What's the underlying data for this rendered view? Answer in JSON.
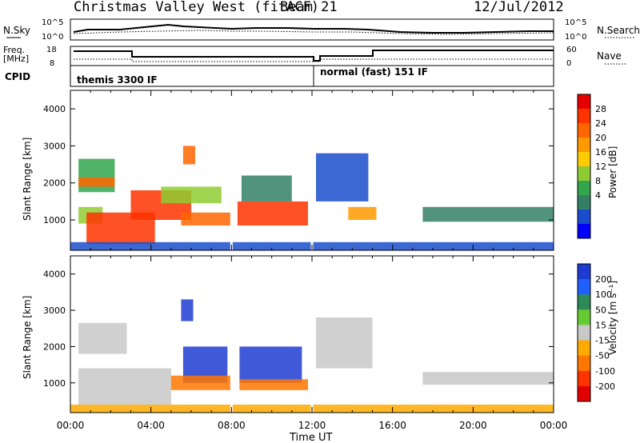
{
  "header": {
    "station": "Christmas Valley West (fitACF)",
    "beam": "Beam 21",
    "date": "12/Jul/2012"
  },
  "summary": {
    "nsky_label": "N.Sky",
    "freq_label_1": "Freq.",
    "freq_label_2": "[MHz]",
    "cpid_label": "CPID",
    "nsearch_label": "N.Search",
    "nave_label": "Nave",
    "noise_ticks": [
      "10^5",
      "10^0"
    ],
    "freq_ticks": [
      "18",
      "8"
    ],
    "nave_ticks": [
      "60",
      "0"
    ],
    "cpid_names": [
      "themis 3300 IF",
      "normal (fast) 151 IF"
    ]
  },
  "axes": {
    "ylabel": "Slant Range [km]",
    "xlabel": "Time UT",
    "xticks": [
      "00:00",
      "04:00",
      "08:00",
      "12:00",
      "16:00",
      "20:00",
      "00:00"
    ],
    "yticks": [
      "1000",
      "2000",
      "3000",
      "4000"
    ]
  },
  "colorbars": {
    "power": {
      "label": "Power [dB]",
      "ticks": [
        "28",
        "24",
        "20",
        "16",
        "12",
        "8",
        "4"
      ],
      "colors": [
        "#e60000",
        "#ff3300",
        "#ff6600",
        "#ff9900",
        "#ffcc00",
        "#8fcc33",
        "#33a64d",
        "#338066",
        "#1a4dcc",
        "#0000ff"
      ]
    },
    "velocity": {
      "label": "Velocity [m s⁻¹]",
      "ticks": [
        "200",
        "100",
        "50",
        "15",
        "-15",
        "-50",
        "-100",
        "-200"
      ],
      "colors": [
        "#1e3cd2",
        "#2060ff",
        "#2e8b57",
        "#66cc33",
        "#c8c8c8",
        "#ffaa00",
        "#ff7700",
        "#ff3300",
        "#e00000"
      ]
    }
  },
  "chart_data": [
    {
      "type": "heatmap",
      "title": "Power",
      "xlabel": "Time UT",
      "ylabel": "Slant Range [km]",
      "xlim_hours": [
        0,
        24
      ],
      "ylim_km": [
        180,
        4500
      ],
      "colorbar": {
        "label": "Power [dB]",
        "range": [
          0,
          32
        ]
      },
      "regions": [
        {
          "t": [
            0.4,
            2.2
          ],
          "r": [
            1750,
            2650
          ],
          "db": 12
        },
        {
          "t": [
            0.4,
            2.2
          ],
          "r": [
            1900,
            2150
          ],
          "db": 24
        },
        {
          "t": [
            0.4,
            1.6
          ],
          "r": [
            900,
            1350
          ],
          "db": 14
        },
        {
          "t": [
            0.8,
            4.2
          ],
          "r": [
            350,
            1200
          ],
          "db": 26
        },
        {
          "t": [
            3.0,
            6.0
          ],
          "r": [
            1000,
            1800
          ],
          "db": 26
        },
        {
          "t": [
            4.5,
            7.5
          ],
          "r": [
            1450,
            1900
          ],
          "db": 14
        },
        {
          "t": [
            5.6,
            6.2
          ],
          "r": [
            2500,
            3000
          ],
          "db": 22
        },
        {
          "t": [
            5.5,
            8.0
          ],
          "r": [
            850,
            1200
          ],
          "db": 24
        },
        {
          "t": [
            8.3,
            11.8
          ],
          "r": [
            850,
            1500
          ],
          "db": 26
        },
        {
          "t": [
            8.5,
            11.0
          ],
          "r": [
            1500,
            2200
          ],
          "db": 10
        },
        {
          "t": [
            12.2,
            14.8
          ],
          "r": [
            1500,
            2800
          ],
          "db": 8
        },
        {
          "t": [
            13.8,
            15.2
          ],
          "r": [
            1000,
            1350
          ],
          "db": 18
        },
        {
          "t": [
            17.5,
            24.0
          ],
          "r": [
            950,
            1350
          ],
          "db": 10
        },
        {
          "t": [
            0.0,
            24.0
          ],
          "r": [
            180,
            400
          ],
          "db": 6
        }
      ]
    },
    {
      "type": "heatmap",
      "title": "Velocity",
      "xlabel": "Time UT",
      "ylabel": "Slant Range [km]",
      "xlim_hours": [
        0,
        24
      ],
      "ylim_km": [
        180,
        4500
      ],
      "colorbar": {
        "label": "Velocity [m s⁻¹]",
        "range": [
          -250,
          250
        ]
      },
      "regions": [
        {
          "t": [
            0.4,
            2.8
          ],
          "r": [
            1800,
            2650
          ],
          "v": 0
        },
        {
          "t": [
            0.4,
            5.0
          ],
          "r": [
            400,
            1400
          ],
          "v": 0
        },
        {
          "t": [
            5.5,
            6.1
          ],
          "r": [
            2700,
            3300
          ],
          "v": 150
        },
        {
          "t": [
            5.6,
            7.8
          ],
          "r": [
            1000,
            2000
          ],
          "v": 180
        },
        {
          "t": [
            5.0,
            8.0
          ],
          "r": [
            800,
            1200
          ],
          "v": -60
        },
        {
          "t": [
            8.4,
            11.5
          ],
          "r": [
            1000,
            2000
          ],
          "v": 160
        },
        {
          "t": [
            8.4,
            11.8
          ],
          "r": [
            800,
            1100
          ],
          "v": -70
        },
        {
          "t": [
            12.2,
            15.0
          ],
          "r": [
            1400,
            2800
          ],
          "v": 0
        },
        {
          "t": [
            17.5,
            24.0
          ],
          "r": [
            950,
            1300
          ],
          "v": 0
        },
        {
          "t": [
            0.0,
            24.0
          ],
          "r": [
            180,
            400
          ],
          "v": -30
        }
      ]
    }
  ]
}
